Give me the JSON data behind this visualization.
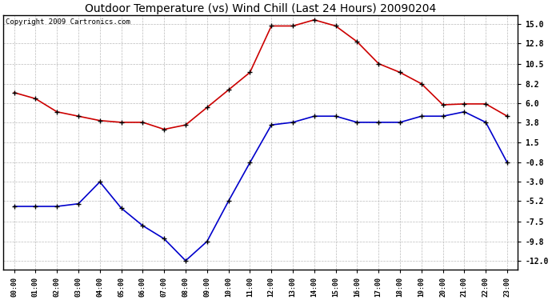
{
  "title": "Outdoor Temperature (vs) Wind Chill (Last 24 Hours) 20090204",
  "copyright": "Copyright 2009 Cartronics.com",
  "hours": [
    "00:00",
    "01:00",
    "02:00",
    "03:00",
    "04:00",
    "05:00",
    "06:00",
    "07:00",
    "08:00",
    "09:00",
    "10:00",
    "11:00",
    "12:00",
    "13:00",
    "14:00",
    "15:00",
    "16:00",
    "17:00",
    "18:00",
    "19:00",
    "20:00",
    "21:00",
    "22:00",
    "23:00"
  ],
  "temp": [
    7.2,
    6.5,
    5.0,
    4.5,
    4.0,
    3.8,
    3.8,
    3.0,
    3.5,
    5.5,
    7.5,
    9.5,
    14.8,
    14.8,
    15.5,
    14.8,
    13.0,
    10.5,
    9.5,
    8.2,
    5.8,
    5.9,
    5.9,
    4.5
  ],
  "windchill": [
    -5.8,
    -5.8,
    -5.8,
    -5.5,
    -3.0,
    -6.0,
    -8.0,
    -9.5,
    -12.0,
    -9.8,
    -5.2,
    -0.8,
    3.5,
    3.8,
    4.5,
    4.5,
    3.8,
    3.8,
    3.8,
    4.5,
    4.5,
    5.0,
    3.8,
    -0.8
  ],
  "temp_color": "#cc0000",
  "windchill_color": "#0000cc",
  "yticks": [
    15.0,
    12.8,
    10.5,
    8.2,
    6.0,
    3.8,
    1.5,
    -0.8,
    -3.0,
    -5.2,
    -7.5,
    -9.8,
    -12.0
  ],
  "ylim_min": -13.0,
  "ylim_max": 16.0,
  "background_color": "#ffffff",
  "grid_color": "#bbbbbb",
  "title_fontsize": 10,
  "copyright_fontsize": 6.5
}
